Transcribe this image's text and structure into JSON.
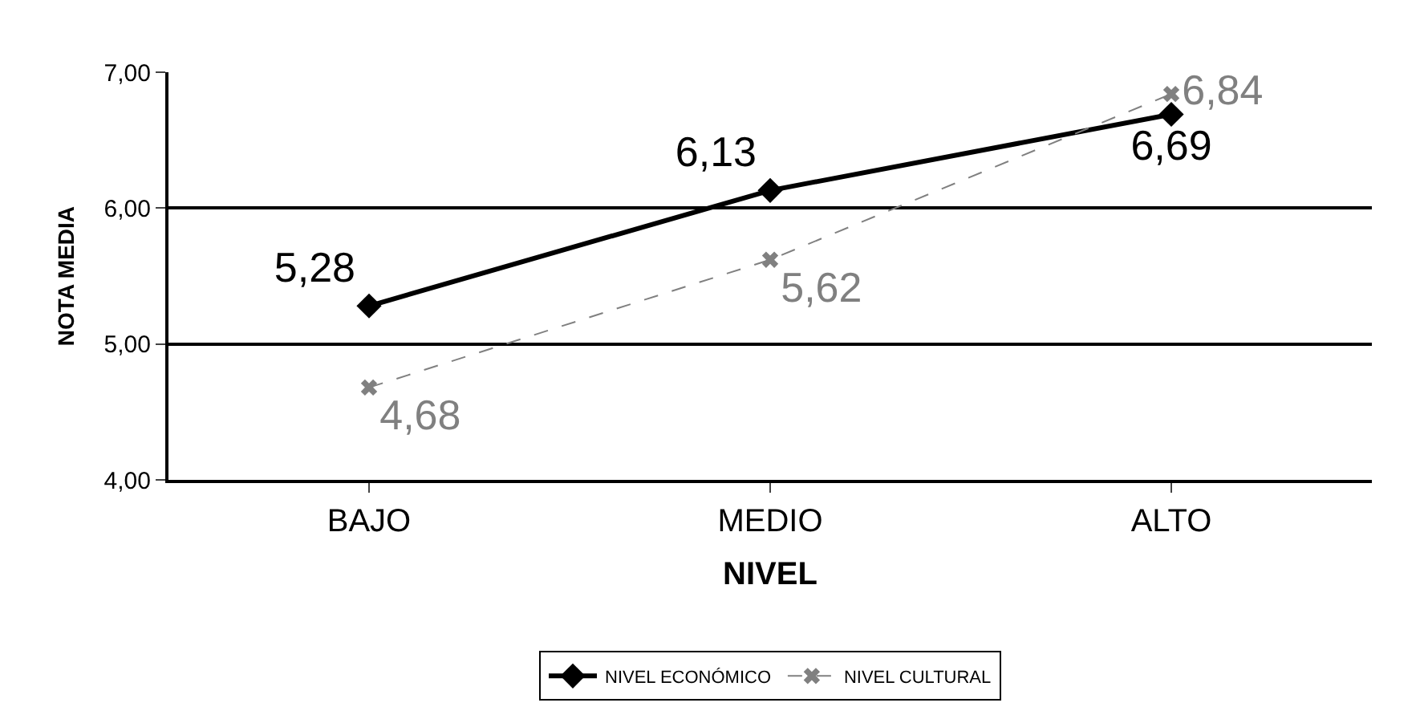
{
  "chart_data": {
    "type": "line",
    "xlabel": "NIVEL",
    "ylabel": "NOTA MEDIA",
    "categories": [
      "BAJO",
      "MEDIO",
      "ALTO"
    ],
    "series": [
      {
        "name": "NIVEL ECONÓMICO",
        "color": "#000000",
        "values": [
          5.28,
          6.13,
          6.69
        ],
        "marker": "diamond",
        "line_style": "solid",
        "value_labels": [
          "5,28",
          "6,13",
          "6,69"
        ]
      },
      {
        "name": "NIVEL CULTURAL",
        "color": "#808080",
        "values": [
          4.68,
          5.62,
          6.84
        ],
        "marker": "cross",
        "line_style": "dashed",
        "value_labels": [
          "4,68",
          "5,62",
          "6,84"
        ]
      }
    ],
    "ylim": [
      4,
      7
    ],
    "yticks": [
      {
        "value": 4,
        "label": "4,00"
      },
      {
        "value": 5,
        "label": "5,00"
      },
      {
        "value": 6,
        "label": "6,00"
      },
      {
        "value": 7,
        "label": "7,00"
      }
    ],
    "grid": "y",
    "legend": "bottom"
  }
}
